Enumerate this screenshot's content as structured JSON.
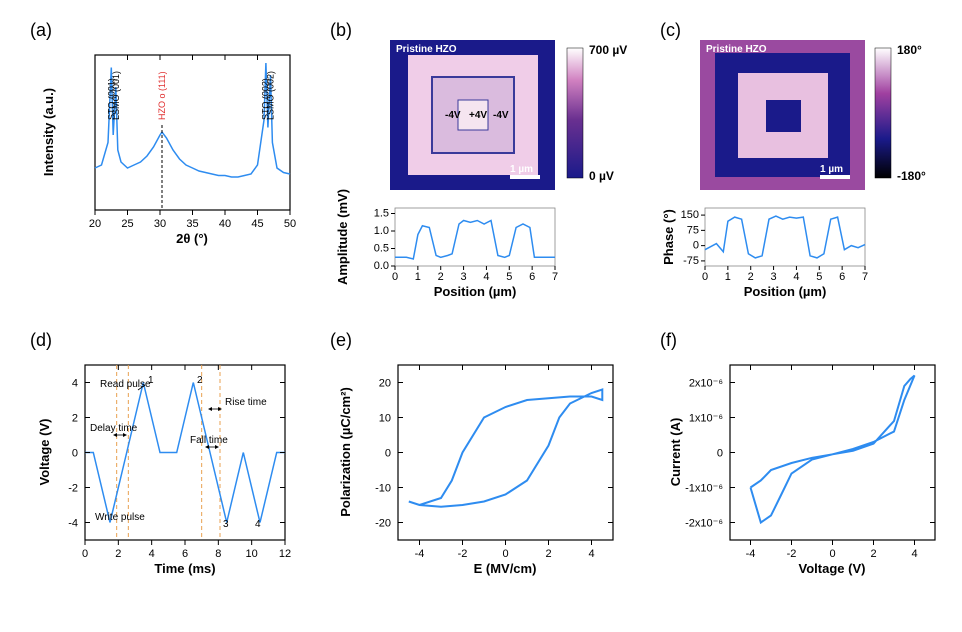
{
  "panels": {
    "a": {
      "label": "(a)"
    },
    "b": {
      "label": "(b)"
    },
    "c": {
      "label": "(c)"
    },
    "d": {
      "label": "(d)"
    },
    "e": {
      "label": "(e)"
    },
    "f": {
      "label": "(f)"
    }
  },
  "xrd": {
    "xlabel": "2θ (°)",
    "ylabel": "Intensity (a.u.)",
    "xlim": [
      20,
      50
    ],
    "xticks": [
      20,
      25,
      30,
      35,
      40,
      45,
      50
    ],
    "peaks": [
      {
        "label": "STO (001)",
        "x": 22.5,
        "color": "#000"
      },
      {
        "label": "LSMO (001)",
        "x": 23.2,
        "color": "#000"
      },
      {
        "label": "HZO o (111)",
        "x": 30.3,
        "color": "#e03030"
      },
      {
        "label": "STO (002)",
        "x": 46.2,
        "color": "#000"
      },
      {
        "label": "LSMO (002)",
        "x": 47.0,
        "color": "#000"
      }
    ],
    "line_color": "#2e8cf0",
    "data": [
      [
        20,
        28
      ],
      [
        21,
        30
      ],
      [
        22,
        45
      ],
      [
        22.5,
        95
      ],
      [
        22.8,
        50
      ],
      [
        23.2,
        82
      ],
      [
        23.5,
        40
      ],
      [
        24,
        32
      ],
      [
        25,
        28
      ],
      [
        26,
        30
      ],
      [
        27,
        32
      ],
      [
        28,
        36
      ],
      [
        29,
        42
      ],
      [
        30,
        50
      ],
      [
        30.3,
        52
      ],
      [
        31,
        48
      ],
      [
        32,
        40
      ],
      [
        33,
        34
      ],
      [
        34,
        30
      ],
      [
        35,
        28
      ],
      [
        36,
        26
      ],
      [
        37,
        25
      ],
      [
        38,
        24
      ],
      [
        39,
        23
      ],
      [
        40,
        23
      ],
      [
        41,
        22
      ],
      [
        42,
        22
      ],
      [
        43,
        23
      ],
      [
        44,
        24
      ],
      [
        45,
        30
      ],
      [
        46,
        60
      ],
      [
        46.3,
        98
      ],
      [
        46.6,
        55
      ],
      [
        47,
        90
      ],
      [
        47.3,
        45
      ],
      [
        48,
        28
      ],
      [
        49,
        25
      ],
      [
        50,
        24
      ]
    ]
  },
  "pfm_amp": {
    "title": "Pristine HZO",
    "cbar_top": "700 µV",
    "cbar_bot": "0 µV",
    "scalebar": "1 µm",
    "voltages": [
      "-4V",
      "+4V",
      "-4V"
    ],
    "profile_xlabel": "Position (µm)",
    "profile_ylabel": "Amplitude (mV)",
    "profile_xlim": [
      0,
      7
    ],
    "profile_xticks": [
      0,
      1,
      2,
      3,
      4,
      5,
      6,
      7
    ],
    "profile_ylim": [
      0,
      1.6
    ],
    "profile_yticks": [
      0.0,
      0.5,
      1.0,
      1.5
    ],
    "profile_data": [
      [
        0,
        0.25
      ],
      [
        0.5,
        0.25
      ],
      [
        0.8,
        0.2
      ],
      [
        1.0,
        0.9
      ],
      [
        1.2,
        1.15
      ],
      [
        1.5,
        1.1
      ],
      [
        1.8,
        0.3
      ],
      [
        2.0,
        0.25
      ],
      [
        2.3,
        0.3
      ],
      [
        2.5,
        0.35
      ],
      [
        2.8,
        1.2
      ],
      [
        3.0,
        1.3
      ],
      [
        3.3,
        1.25
      ],
      [
        3.6,
        1.3
      ],
      [
        3.9,
        1.2
      ],
      [
        4.2,
        1.3
      ],
      [
        4.5,
        0.3
      ],
      [
        4.8,
        0.25
      ],
      [
        5.0,
        0.3
      ],
      [
        5.3,
        1.1
      ],
      [
        5.6,
        1.2
      ],
      [
        5.9,
        1.1
      ],
      [
        6.1,
        0.25
      ],
      [
        6.5,
        0.25
      ],
      [
        7,
        0.25
      ]
    ],
    "colors": {
      "low": "#1a1a8a",
      "high": "#f5d5f0",
      "mid": "#a040a0"
    }
  },
  "pfm_phase": {
    "title": "Pristine HZO",
    "cbar_top": "180°",
    "cbar_bot": "-180°",
    "scalebar": "1 µm",
    "profile_xlabel": "Position (µm)",
    "profile_ylabel": "Phase (°)",
    "profile_xlim": [
      0,
      7
    ],
    "profile_xticks": [
      0,
      1,
      2,
      3,
      4,
      5,
      6,
      7
    ],
    "profile_ylim": [
      -100,
      175
    ],
    "profile_yticks": [
      -75,
      0,
      75,
      150
    ],
    "profile_data": [
      [
        0,
        -20
      ],
      [
        0.5,
        10
      ],
      [
        0.8,
        -30
      ],
      [
        1.0,
        120
      ],
      [
        1.3,
        140
      ],
      [
        1.6,
        130
      ],
      [
        1.9,
        -40
      ],
      [
        2.2,
        -60
      ],
      [
        2.5,
        -50
      ],
      [
        2.8,
        130
      ],
      [
        3.1,
        145
      ],
      [
        3.4,
        130
      ],
      [
        3.7,
        140
      ],
      [
        4.0,
        135
      ],
      [
        4.3,
        140
      ],
      [
        4.6,
        -50
      ],
      [
        4.9,
        -60
      ],
      [
        5.2,
        -40
      ],
      [
        5.5,
        130
      ],
      [
        5.8,
        140
      ],
      [
        6.1,
        -20
      ],
      [
        6.4,
        0
      ],
      [
        6.7,
        -10
      ],
      [
        7,
        5
      ]
    ],
    "colors": {
      "low": "#000000",
      "high": "#f5d5f0",
      "mid": "#1a1a8a",
      "mid2": "#a040a0"
    }
  },
  "pund": {
    "xlabel": "Time (ms)",
    "ylabel": "Voltage (V)",
    "xlim": [
      0,
      12
    ],
    "ylim": [
      -5,
      5
    ],
    "xticks": [
      0,
      2,
      4,
      6,
      8,
      10,
      12
    ],
    "yticks": [
      -4,
      -2,
      0,
      2,
      4
    ],
    "annotations": {
      "read_pulse": "Read pulse",
      "delay_time": "Delay time",
      "write_pulse": "Write pulse",
      "rise_time": "Rise time",
      "fall_time": "Fall time",
      "nums": [
        "1",
        "2",
        "3",
        "4"
      ]
    },
    "dash_color": "#e8a050",
    "data": [
      [
        0,
        0
      ],
      [
        0.5,
        0
      ],
      [
        1.5,
        -4
      ],
      [
        2.5,
        0
      ],
      [
        3.5,
        4
      ],
      [
        4.5,
        0
      ],
      [
        5.5,
        0
      ],
      [
        6.5,
        4
      ],
      [
        7.5,
        0
      ],
      [
        8.5,
        -4
      ],
      [
        9.5,
        0
      ],
      [
        10.5,
        -4
      ],
      [
        11.5,
        0
      ],
      [
        12,
        0
      ]
    ]
  },
  "pe_loop": {
    "xlabel": "E (MV/cm)",
    "ylabel": "Polarization (µC/cm²)",
    "xlim": [
      -5,
      5
    ],
    "ylim": [
      -25,
      25
    ],
    "xticks": [
      -4,
      -2,
      0,
      2,
      4
    ],
    "yticks": [
      -20,
      -10,
      0,
      10,
      20
    ],
    "line_color": "#2e8cf0",
    "loop": [
      [
        -4.5,
        -14
      ],
      [
        -4,
        -15
      ],
      [
        -3,
        -15.5
      ],
      [
        -2,
        -15
      ],
      [
        -1,
        -14
      ],
      [
        0,
        -12
      ],
      [
        1,
        -8
      ],
      [
        2,
        2
      ],
      [
        2.5,
        10
      ],
      [
        3,
        14
      ],
      [
        4,
        17
      ],
      [
        4.5,
        18
      ],
      [
        4.5,
        15
      ],
      [
        4,
        16
      ],
      [
        3,
        16
      ],
      [
        2,
        15.5
      ],
      [
        1,
        15
      ],
      [
        0,
        13
      ],
      [
        -1,
        10
      ],
      [
        -2,
        0
      ],
      [
        -2.5,
        -8
      ],
      [
        -3,
        -13
      ],
      [
        -4,
        -15
      ],
      [
        -4.5,
        -14
      ]
    ]
  },
  "iv_loop": {
    "xlabel": "Voltage (V)",
    "ylabel": "Current (A)",
    "xlim": [
      -5,
      5
    ],
    "ylim": [
      -2.5e-06,
      2.5e-06
    ],
    "xticks": [
      -4,
      -2,
      0,
      2,
      4
    ],
    "yticks_labels": [
      "-2x10⁻⁶",
      "-1x10⁻⁶",
      "0",
      "1x10⁻⁶",
      "2x10⁻⁶"
    ],
    "yticks_vals": [
      -2e-06,
      -1e-06,
      0,
      1e-06,
      2e-06
    ],
    "line_color": "#2e8cf0",
    "loop": [
      [
        -4,
        -1e-06
      ],
      [
        -3.5,
        -2e-06
      ],
      [
        -3,
        -1.8e-06
      ],
      [
        -2.5,
        -1.2e-06
      ],
      [
        -2,
        -6e-07
      ],
      [
        -1,
        -2e-07
      ],
      [
        0,
        -5e-08
      ],
      [
        1,
        1e-07
      ],
      [
        2,
        3e-07
      ],
      [
        3,
        6e-07
      ],
      [
        3.5,
        1.5e-06
      ],
      [
        4,
        2.2e-06
      ],
      [
        3.8,
        2.1e-06
      ],
      [
        3.5,
        1.9e-06
      ],
      [
        3,
        9e-07
      ],
      [
        2,
        2.5e-07
      ],
      [
        1,
        5e-08
      ],
      [
        0,
        -5e-08
      ],
      [
        -1,
        -1.5e-07
      ],
      [
        -2,
        -3e-07
      ],
      [
        -3,
        -5e-07
      ],
      [
        -3.5,
        -8e-07
      ],
      [
        -4,
        -1e-06
      ]
    ]
  }
}
